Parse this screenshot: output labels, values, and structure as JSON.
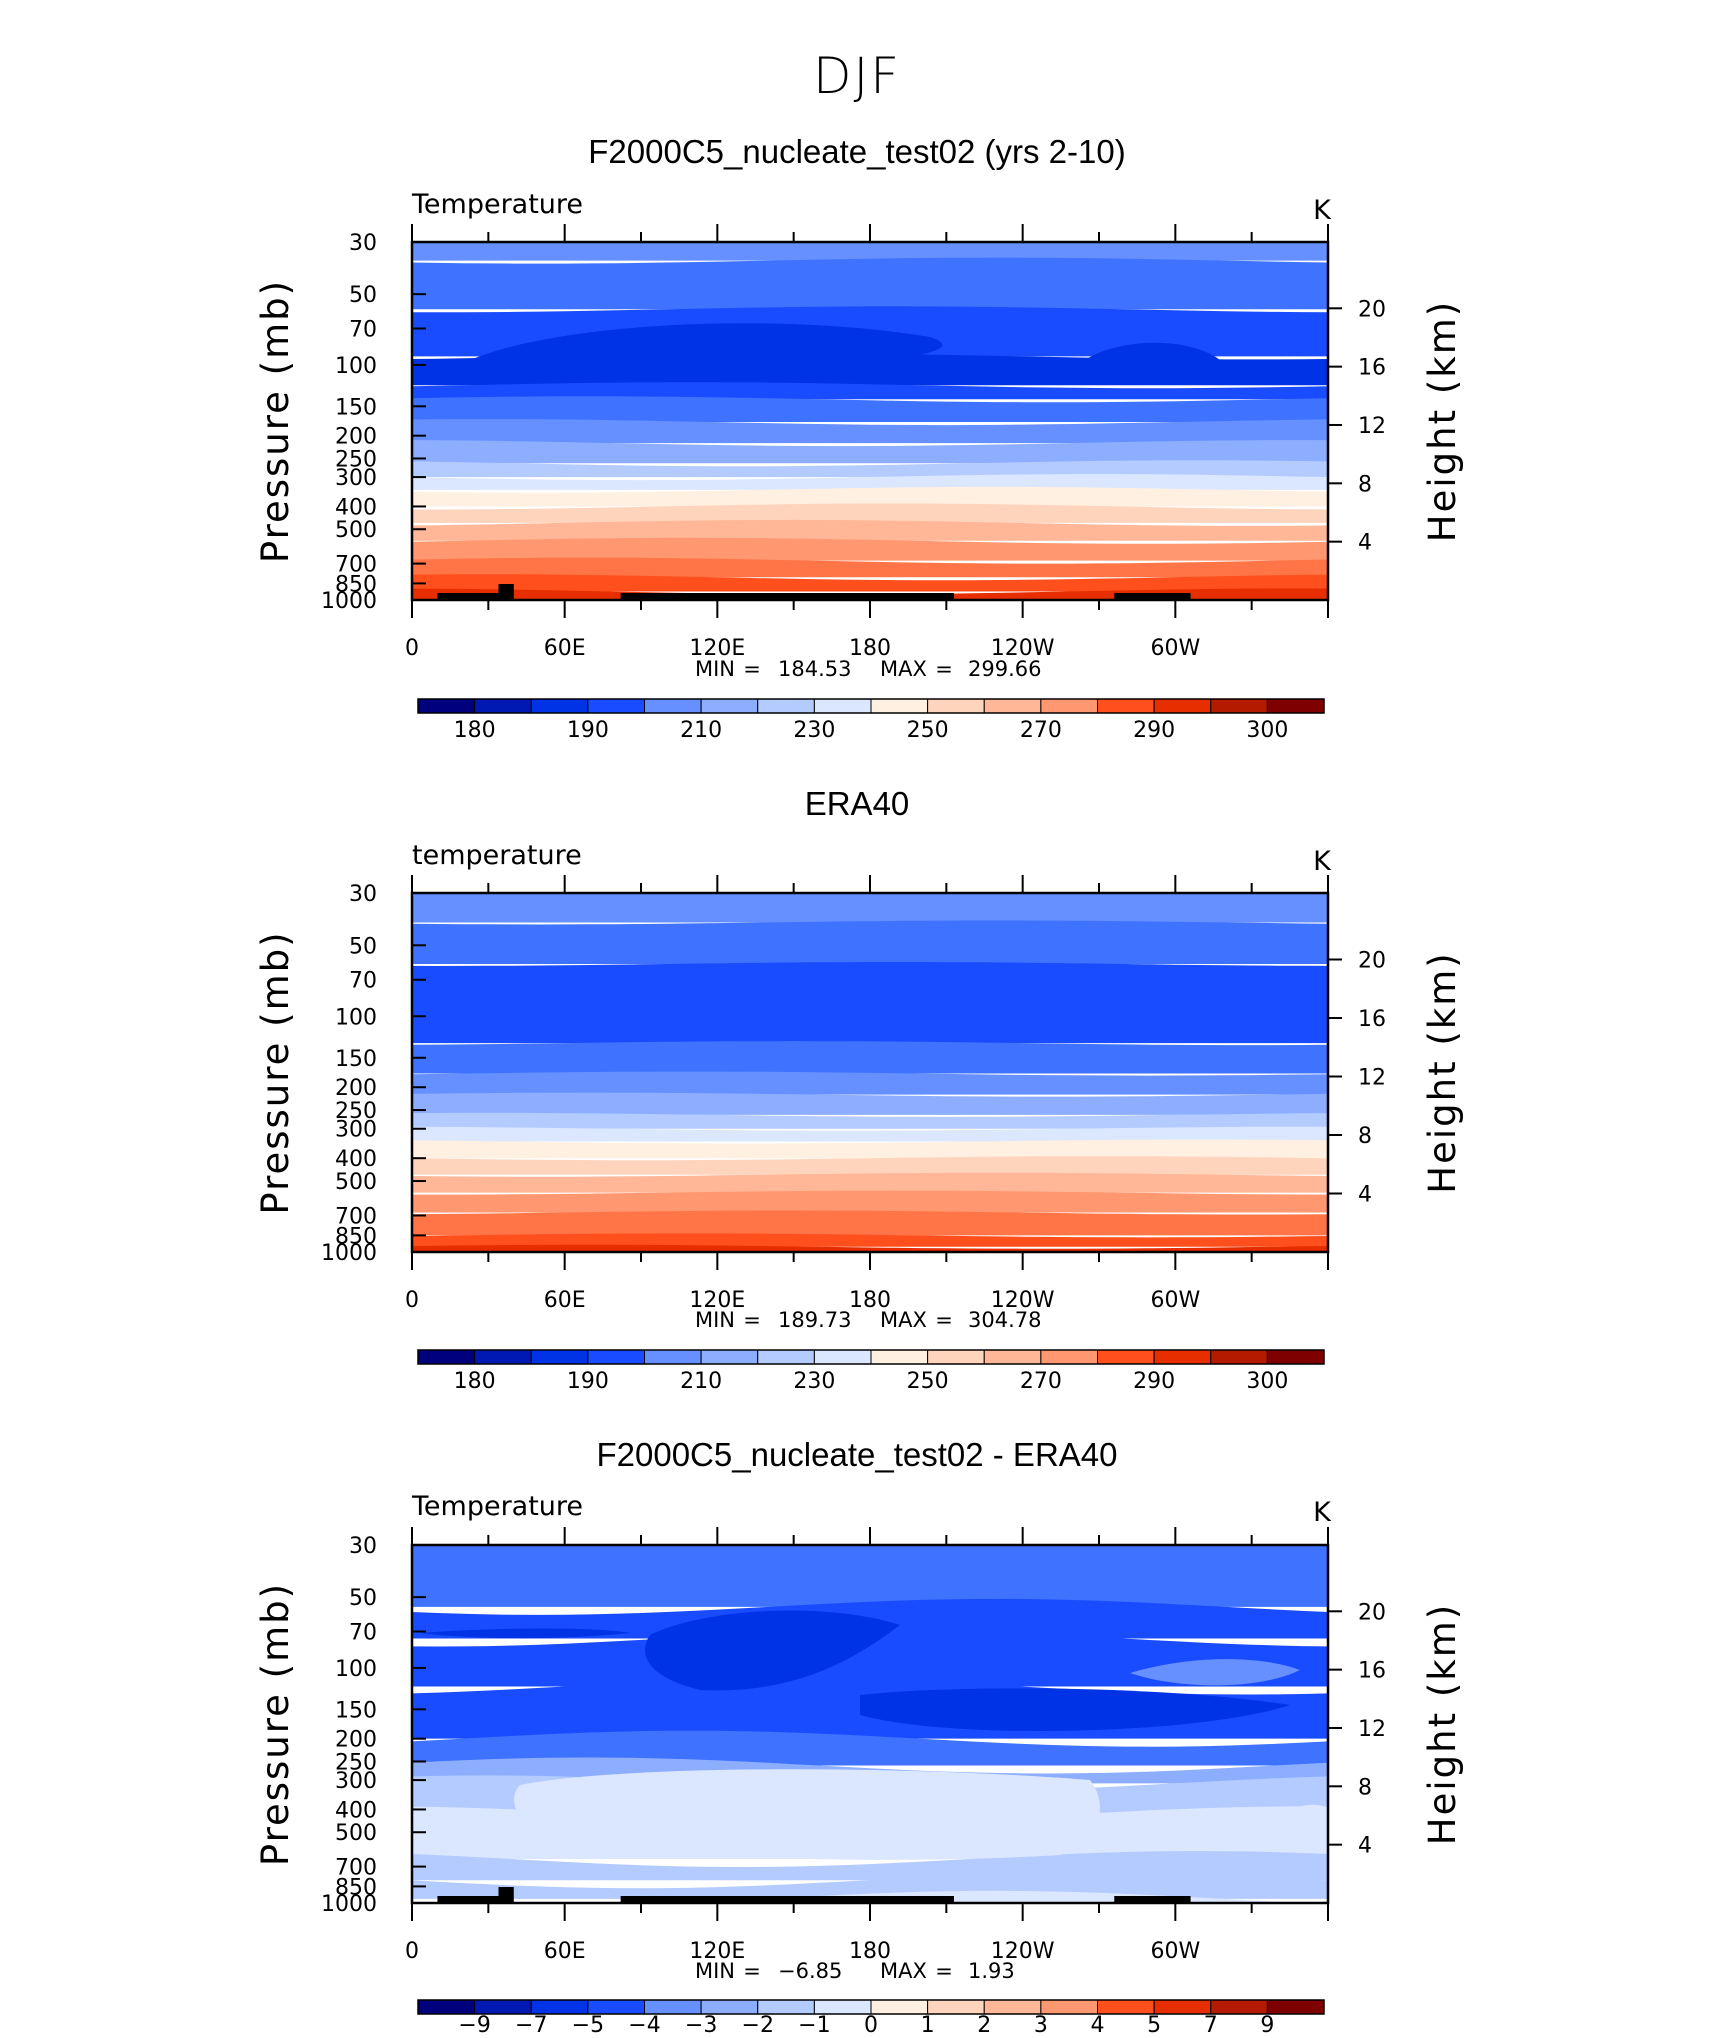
{
  "figure_title": "DJF",
  "colors": {
    "abs": [
      "#00007f",
      "#0019b3",
      "#0033e5",
      "#1a4cff",
      "#3f73ff",
      "#6690ff",
      "#8daeff",
      "#b4cbff",
      "#dbe7ff",
      "#fff0e1",
      "#ffd4bc",
      "#ffb797",
      "#ff9770",
      "#ff7547",
      "#ff4f1c",
      "#e62e00",
      "#b31a00",
      "#7f0000"
    ],
    "diff": [
      "#00007f",
      "#0019b3",
      "#0033e5",
      "#1a4cff",
      "#3f73ff",
      "#6690ff",
      "#8daeff",
      "#b4cbff",
      "#dbe7ff",
      "#fff0e1",
      "#ffd4bc",
      "#ffb797",
      "#ff9770",
      "#ff7547",
      "#ff4f1c",
      "#e62e00",
      "#b31a00",
      "#7f0000"
    ]
  },
  "chart_data": [
    {
      "type": "heatmap",
      "title": "F2000C5_nucleate_test02 (yrs 2-10)",
      "subtitle_left": "Temperature",
      "subtitle_right": "K",
      "ylabel": "Pressure (mb)",
      "ylabel_right": "Height (km)",
      "y_ticks": [
        "30",
        "50",
        "70",
        "100",
        "150",
        "200",
        "250",
        "300",
        "400",
        "500",
        "700",
        "850",
        "1000"
      ],
      "y_right_ticks": [
        "20",
        "16",
        "12",
        "8",
        "4"
      ],
      "x_ticks": [
        "0",
        "60E",
        "120E",
        "180",
        "120W",
        "60W"
      ],
      "min_label": "MIN",
      "min_value": "184.53",
      "max_label": "MAX",
      "max_value": "299.66",
      "levels_bands": [
        "175",
        "180",
        "185",
        "190",
        "200",
        "210",
        "220",
        "230",
        "240",
        "250",
        "260",
        "270",
        "280",
        "290",
        "295",
        "300"
      ],
      "colorbar_labels": [
        "180",
        "190",
        "210",
        "230",
        "250",
        "270",
        "290",
        "300"
      ],
      "orography": true
    },
    {
      "type": "heatmap",
      "title": "ERA40",
      "subtitle_left": "temperature",
      "subtitle_right": "K",
      "ylabel": "Pressure (mb)",
      "ylabel_right": "Height (km)",
      "y_ticks": [
        "30",
        "50",
        "70",
        "100",
        "150",
        "200",
        "250",
        "300",
        "400",
        "500",
        "700",
        "850",
        "1000"
      ],
      "y_right_ticks": [
        "20",
        "16",
        "12",
        "8",
        "4"
      ],
      "x_ticks": [
        "0",
        "60E",
        "120E",
        "180",
        "120W",
        "60W"
      ],
      "min_label": "MIN",
      "min_value": "189.73",
      "max_label": "MAX",
      "max_value": "304.78",
      "colorbar_labels": [
        "180",
        "190",
        "210",
        "230",
        "250",
        "270",
        "290",
        "300"
      ],
      "orography": false
    },
    {
      "type": "heatmap",
      "title": "F2000C5_nucleate_test02 - ERA40",
      "subtitle_left": "Temperature",
      "subtitle_right": "K",
      "ylabel": "Pressure (mb)",
      "ylabel_right": "Height (km)",
      "y_ticks": [
        "30",
        "50",
        "70",
        "100",
        "150",
        "200",
        "250",
        "300",
        "400",
        "500",
        "700",
        "850",
        "1000"
      ],
      "y_right_ticks": [
        "20",
        "16",
        "12",
        "8",
        "4"
      ],
      "x_ticks": [
        "0",
        "60E",
        "120E",
        "180",
        "120W",
        "60W"
      ],
      "min_label": "MIN",
      "min_value": "−6.85",
      "max_label": "MAX",
      "max_value": "1.93",
      "colorbar_labels": [
        "−9",
        "−7",
        "−5",
        "−4",
        "−3",
        "−2",
        "−1",
        "0",
        "1",
        "2",
        "3",
        "4",
        "5",
        "7",
        "9"
      ],
      "orography": true
    }
  ]
}
